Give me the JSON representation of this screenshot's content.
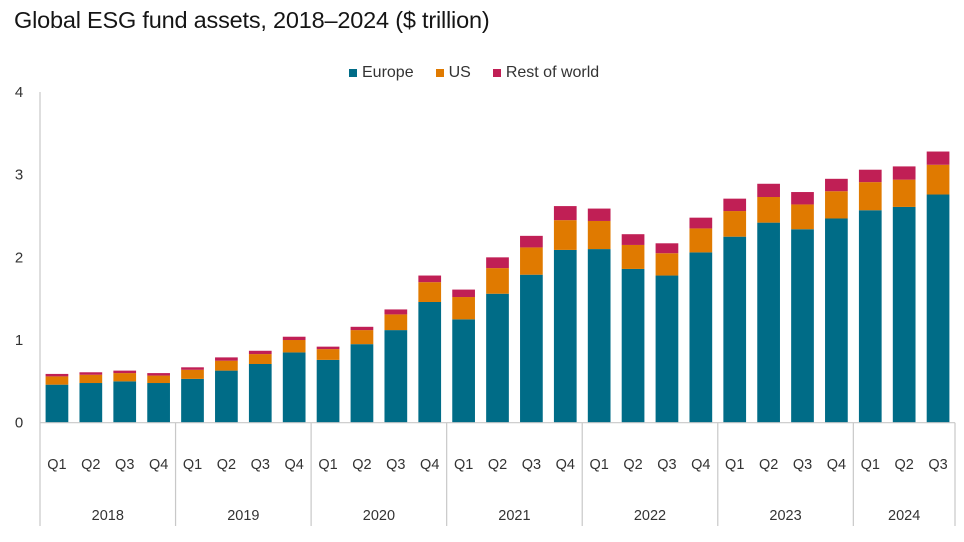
{
  "chart_data": {
    "type": "bar",
    "stacked": true,
    "title": "Global ESG fund assets, 2018–2024 ($ trillion)",
    "xlabel": "",
    "ylabel": "",
    "ylim": [
      0,
      4
    ],
    "yticks": [
      "0",
      "1",
      "2",
      "3",
      "4"
    ],
    "grid": false,
    "legend_position": "top-center",
    "categories": [
      "Q1 2018",
      "Q2 2018",
      "Q3 2018",
      "Q4 2018",
      "Q1 2019",
      "Q2 2019",
      "Q3 2019",
      "Q4 2019",
      "Q1 2020",
      "Q2 2020",
      "Q3 2020",
      "Q4 2020",
      "Q1 2021",
      "Q2 2021",
      "Q3 2021",
      "Q4 2021",
      "Q1 2022",
      "Q2 2022",
      "Q3 2022",
      "Q4 2022",
      "Q1 2023",
      "Q2 2023",
      "Q3 2023",
      "Q4 2023",
      "Q1 2024",
      "Q2 2024",
      "Q3 2024"
    ],
    "groups": [
      {
        "label": "2018",
        "quarters": [
          "Q1",
          "Q2",
          "Q3",
          "Q4"
        ]
      },
      {
        "label": "2019",
        "quarters": [
          "Q1",
          "Q2",
          "Q3",
          "Q4"
        ]
      },
      {
        "label": "2020",
        "quarters": [
          "Q1",
          "Q2",
          "Q3",
          "Q4"
        ]
      },
      {
        "label": "2021",
        "quarters": [
          "Q1",
          "Q2",
          "Q3",
          "Q4"
        ]
      },
      {
        "label": "2022",
        "quarters": [
          "Q1",
          "Q2",
          "Q3",
          "Q4"
        ]
      },
      {
        "label": "2023",
        "quarters": [
          "Q1",
          "Q2",
          "Q3",
          "Q4"
        ]
      },
      {
        "label": "2024",
        "quarters": [
          "Q1",
          "Q2",
          "Q3"
        ]
      }
    ],
    "series": [
      {
        "name": "Europe",
        "color": "#006c87",
        "values": [
          0.46,
          0.48,
          0.5,
          0.48,
          0.53,
          0.63,
          0.71,
          0.85,
          0.76,
          0.95,
          1.12,
          1.46,
          1.25,
          1.56,
          1.79,
          2.09,
          2.1,
          1.86,
          1.78,
          2.06,
          2.25,
          2.42,
          2.34,
          2.47,
          2.57,
          2.61,
          2.76
        ]
      },
      {
        "name": "US",
        "color": "#e07a00",
        "values": [
          0.1,
          0.1,
          0.1,
          0.09,
          0.11,
          0.12,
          0.12,
          0.15,
          0.13,
          0.17,
          0.19,
          0.24,
          0.27,
          0.31,
          0.33,
          0.36,
          0.34,
          0.29,
          0.27,
          0.29,
          0.31,
          0.31,
          0.3,
          0.33,
          0.34,
          0.33,
          0.36
        ]
      },
      {
        "name": "Rest of world",
        "color": "#c01f55",
        "values": [
          0.03,
          0.03,
          0.03,
          0.03,
          0.03,
          0.04,
          0.04,
          0.04,
          0.03,
          0.04,
          0.06,
          0.08,
          0.09,
          0.13,
          0.14,
          0.17,
          0.15,
          0.13,
          0.12,
          0.13,
          0.15,
          0.16,
          0.15,
          0.15,
          0.15,
          0.16,
          0.16
        ]
      }
    ]
  }
}
